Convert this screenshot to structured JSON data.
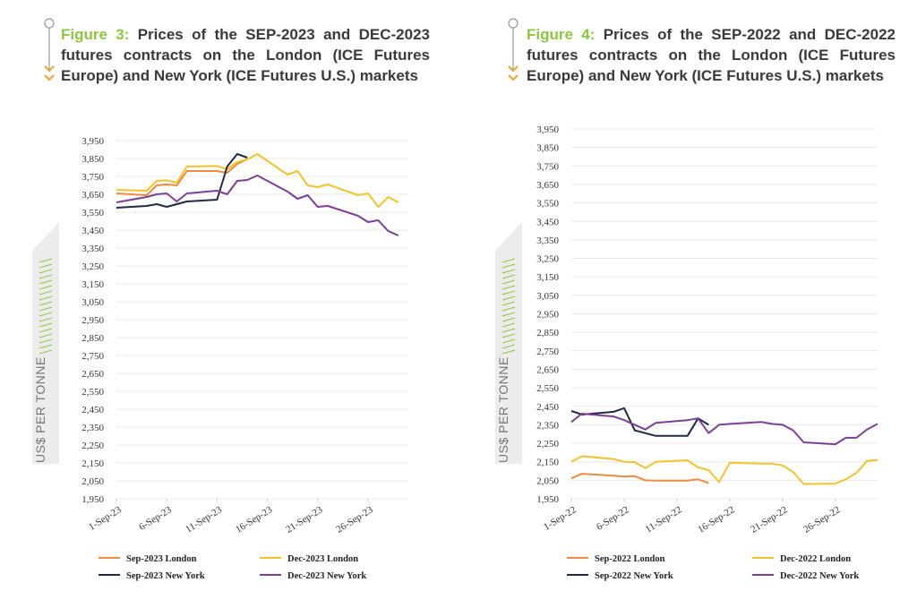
{
  "chart_data": [
    {
      "type": "line",
      "figure_label": "Figure 3:",
      "title": "Prices of the SEP-2023 and DEC-2023 futures contracts on the London (ICE Futures Europe) and New York (ICE Futures U.S.) markets",
      "ylabel": "US$ PER TONNE",
      "x": [
        "2023-09-01",
        "2023-09-04",
        "2023-09-05",
        "2023-09-06",
        "2023-09-07",
        "2023-09-08",
        "2023-09-11",
        "2023-09-12",
        "2023-09-13",
        "2023-09-14",
        "2023-09-15",
        "2023-09-18",
        "2023-09-19",
        "2023-09-20",
        "2023-09-21",
        "2023-09-22",
        "2023-09-25",
        "2023-09-26",
        "2023-09-27",
        "2023-09-28",
        "2023-09-29"
      ],
      "series": [
        {
          "name": "Sep-2023 London",
          "color": "#f08a3c",
          "values": [
            3655,
            3645,
            3700,
            3705,
            3700,
            3780,
            3780,
            3770,
            3820,
            3845,
            null,
            null,
            null,
            null,
            null,
            null,
            null,
            null,
            null,
            null,
            null
          ]
        },
        {
          "name": "Dec-2023 London",
          "color": "#f5c22a",
          "values": [
            3675,
            3670,
            3725,
            3728,
            3715,
            3805,
            3808,
            3790,
            3830,
            3845,
            3875,
            3760,
            3780,
            3700,
            3690,
            3705,
            3645,
            3655,
            3580,
            3635,
            3605
          ]
        },
        {
          "name": "Sep-2023 New York",
          "color": "#1f2a44",
          "values": [
            3575,
            3585,
            3595,
            3580,
            3595,
            3610,
            3620,
            3805,
            3875,
            3855,
            null,
            null,
            null,
            null,
            null,
            null,
            null,
            null,
            null,
            null,
            null
          ]
        },
        {
          "name": "Dec-2023 New York",
          "color": "#7b3f98",
          "values": [
            3605,
            3635,
            3650,
            3655,
            3610,
            3655,
            3670,
            3650,
            3725,
            3730,
            3755,
            3665,
            3625,
            3645,
            3580,
            3585,
            3530,
            3495,
            3505,
            3445,
            3420
          ]
        }
      ],
      "xlim": [
        "2023-09-01",
        "2023-09-30"
      ],
      "xticks": [
        {
          "value": "2023-09-01",
          "label": "1-Sep-23"
        },
        {
          "value": "2023-09-06",
          "label": "6-Sep-23"
        },
        {
          "value": "2023-09-11",
          "label": "11-Sep-23"
        },
        {
          "value": "2023-09-16",
          "label": "16-Sep-23"
        },
        {
          "value": "2023-09-21",
          "label": "21-Sep-23"
        },
        {
          "value": "2023-09-26",
          "label": "26-Sep-23"
        }
      ],
      "ylim": [
        1950,
        3950
      ],
      "yticks": [
        {
          "value": 1950,
          "label": "1,950"
        },
        {
          "value": 2050,
          "label": "2,050"
        },
        {
          "value": 2150,
          "label": "2,150"
        },
        {
          "value": 2250,
          "label": "2,250"
        },
        {
          "value": 2350,
          "label": "2,350"
        },
        {
          "value": 2450,
          "label": "2,450"
        },
        {
          "value": 2550,
          "label": "2,550"
        },
        {
          "value": 2650,
          "label": "2,650"
        },
        {
          "value": 2750,
          "label": "2,750"
        },
        {
          "value": 2850,
          "label": "2,850"
        },
        {
          "value": 2950,
          "label": "2,950"
        },
        {
          "value": 3050,
          "label": "3,050"
        },
        {
          "value": 3150,
          "label": "3,150"
        },
        {
          "value": 3250,
          "label": "3,250"
        },
        {
          "value": 3350,
          "label": "3,350"
        },
        {
          "value": 3450,
          "label": "3,450"
        },
        {
          "value": 3550,
          "label": "3,550"
        },
        {
          "value": 3650,
          "label": "3,650"
        },
        {
          "value": 3750,
          "label": "3,750"
        },
        {
          "value": 3850,
          "label": "3,850"
        },
        {
          "value": 3950,
          "label": "3,950"
        }
      ],
      "grid": true
    },
    {
      "type": "line",
      "figure_label": "Figure 4:",
      "title": "Prices of the SEP-2022 and DEC-2022 futures contracts on the London (ICE Futures Europe) and New York (ICE Futures U.S.) markets",
      "ylabel": "US$ PER TONNE",
      "x": [
        "2022-09-01",
        "2022-09-02",
        "2022-09-05",
        "2022-09-06",
        "2022-09-07",
        "2022-09-08",
        "2022-09-09",
        "2022-09-12",
        "2022-09-13",
        "2022-09-14",
        "2022-09-15",
        "2022-09-16",
        "2022-09-19",
        "2022-09-20",
        "2022-09-21",
        "2022-09-22",
        "2022-09-23",
        "2022-09-26",
        "2022-09-27",
        "2022-09-28",
        "2022-09-29",
        "2022-09-30"
      ],
      "series": [
        {
          "name": "Sep-2022 London",
          "color": "#f08a3c",
          "values": [
            2060,
            2085,
            2075,
            2070,
            2072,
            2050,
            2048,
            2048,
            2055,
            2035,
            null,
            null,
            null,
            null,
            null,
            null,
            null,
            null,
            null,
            null,
            null,
            null
          ]
        },
        {
          "name": "Dec-2022 London",
          "color": "#f5c22a",
          "values": [
            2150,
            2180,
            2165,
            2150,
            2148,
            2115,
            2150,
            2158,
            2120,
            2105,
            2040,
            2145,
            2140,
            2140,
            2130,
            2095,
            2030,
            2032,
            2055,
            2090,
            2155,
            2160
          ]
        },
        {
          "name": "Sep-2022 New York",
          "color": "#1f2a44",
          "values": [
            2425,
            2405,
            2420,
            2440,
            2320,
            2305,
            2290,
            2290,
            2385,
            2350,
            null,
            null,
            null,
            null,
            null,
            null,
            null,
            null,
            null,
            null,
            null,
            null
          ]
        },
        {
          "name": "Dec-2022 New York",
          "color": "#7b3f98",
          "values": [
            2365,
            2410,
            2395,
            2375,
            2350,
            2325,
            2360,
            2375,
            2385,
            2305,
            2350,
            2355,
            2365,
            2355,
            2350,
            2320,
            2255,
            2245,
            2280,
            2280,
            2325,
            2355
          ]
        }
      ],
      "xlim": [
        "2022-09-01",
        "2022-09-30"
      ],
      "xticks": [
        {
          "value": "2022-09-01",
          "label": "1-Sep-22"
        },
        {
          "value": "2022-09-06",
          "label": "6-Sep-22"
        },
        {
          "value": "2022-09-11",
          "label": "11-Sep-22"
        },
        {
          "value": "2022-09-16",
          "label": "16-Sep-22"
        },
        {
          "value": "2022-09-21",
          "label": "21-Sep-22"
        },
        {
          "value": "2022-09-26",
          "label": "26-Sep-22"
        }
      ],
      "ylim": [
        1950,
        3950
      ],
      "yticks": [
        {
          "value": 1950,
          "label": "1,950"
        },
        {
          "value": 2050,
          "label": "2,050"
        },
        {
          "value": 2150,
          "label": "2,150"
        },
        {
          "value": 2250,
          "label": "2,250"
        },
        {
          "value": 2350,
          "label": "2,350"
        },
        {
          "value": 2450,
          "label": "2,450"
        },
        {
          "value": 2550,
          "label": "2,550"
        },
        {
          "value": 2650,
          "label": "2,650"
        },
        {
          "value": 2750,
          "label": "2,750"
        },
        {
          "value": 2850,
          "label": "2,850"
        },
        {
          "value": 2950,
          "label": "2,950"
        },
        {
          "value": 3050,
          "label": "3,050"
        },
        {
          "value": 3150,
          "label": "3,150"
        },
        {
          "value": 3250,
          "label": "3,250"
        },
        {
          "value": 3350,
          "label": "3,350"
        },
        {
          "value": 3450,
          "label": "3,450"
        },
        {
          "value": 3550,
          "label": "3,550"
        },
        {
          "value": 3650,
          "label": "3,650"
        },
        {
          "value": 3750,
          "label": "3,750"
        },
        {
          "value": 3850,
          "label": "3,850"
        },
        {
          "value": 3950,
          "label": "3,950"
        }
      ],
      "grid": true
    }
  ]
}
